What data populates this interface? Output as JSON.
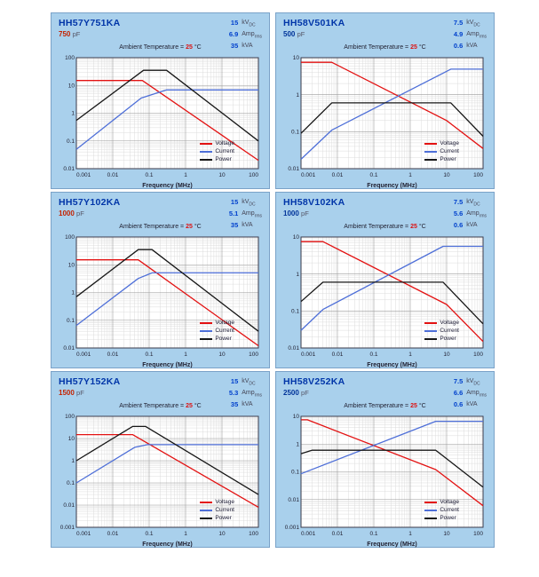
{
  "colors": {
    "voltage": "#e31212",
    "current": "#4e6fd8",
    "power": "#161616",
    "panel_bg": "#a9d0ec",
    "title_navy": "#0035a8",
    "rating_value_blue": "#0040cc",
    "ambient_red": "#dd1111"
  },
  "ambient": {
    "prefix": "Ambient Temperature =",
    "value": "25",
    "unit": "°C"
  },
  "legend": [
    "Voltage",
    "Current",
    "Power"
  ],
  "xlabel": "Frequency (MHz)",
  "x_ticks": [
    "0.001",
    "0.01",
    "0.1",
    "1",
    "10",
    "100"
  ],
  "chart_data": [
    {
      "type": "line",
      "part_number": "HH57Y751KA",
      "capacitance": "750",
      "cap_unit": "pF",
      "cap_color": "#c42200",
      "ratings": [
        {
          "value": "15",
          "unit": "kV",
          "sub": "DC"
        },
        {
          "value": "6.9",
          "unit": "Amp",
          "sub": "rms"
        },
        {
          "value": "35",
          "unit": "kVA",
          "sub": ""
        }
      ],
      "xscale": "log",
      "yscale": "log",
      "xlim": [
        0.001,
        100
      ],
      "ylim": [
        0.01,
        100
      ],
      "series": [
        {
          "name": "Voltage",
          "points": [
            [
              0.001,
              15
            ],
            [
              0.065,
              15
            ],
            [
              100,
              0.02
            ]
          ]
        },
        {
          "name": "Current",
          "points": [
            [
              0.001,
              0.05
            ],
            [
              0.06,
              3.5
            ],
            [
              0.3,
              6.9
            ],
            [
              100,
              6.9
            ]
          ]
        },
        {
          "name": "Power",
          "points": [
            [
              0.001,
              0.55
            ],
            [
              0.07,
              35
            ],
            [
              0.3,
              35
            ],
            [
              100,
              0.1
            ]
          ]
        }
      ]
    },
    {
      "type": "line",
      "part_number": "HH58V501KA",
      "capacitance": "500",
      "cap_unit": "pF",
      "cap_color": "#003399",
      "ratings": [
        {
          "value": "7.5",
          "unit": "kV",
          "sub": "DC"
        },
        {
          "value": "4.9",
          "unit": "Amp",
          "sub": "rms"
        },
        {
          "value": "0.6",
          "unit": "kVA",
          "sub": ""
        }
      ],
      "xscale": "log",
      "yscale": "log",
      "xlim": [
        0.001,
        100
      ],
      "ylim": [
        0.01,
        10
      ],
      "series": [
        {
          "name": "Voltage",
          "points": [
            [
              0.001,
              7.5
            ],
            [
              0.007,
              7.5
            ],
            [
              10,
              0.2
            ],
            [
              100,
              0.035
            ]
          ]
        },
        {
          "name": "Current",
          "points": [
            [
              0.001,
              0.018
            ],
            [
              0.007,
              0.11
            ],
            [
              13,
              4.9
            ],
            [
              100,
              4.9
            ]
          ]
        },
        {
          "name": "Power",
          "points": [
            [
              0.001,
              0.09
            ],
            [
              0.007,
              0.6
            ],
            [
              13,
              0.6
            ],
            [
              100,
              0.075
            ]
          ]
        }
      ]
    },
    {
      "type": "line",
      "part_number": "HH57Y102KA",
      "capacitance": "1000",
      "cap_unit": "pF",
      "cap_color": "#c42200",
      "ratings": [
        {
          "value": "15",
          "unit": "kV",
          "sub": "DC"
        },
        {
          "value": "5.1",
          "unit": "Amp",
          "sub": "rms"
        },
        {
          "value": "35",
          "unit": "kVA",
          "sub": ""
        }
      ],
      "xscale": "log",
      "yscale": "log",
      "xlim": [
        0.001,
        100
      ],
      "ylim": [
        0.01,
        100
      ],
      "series": [
        {
          "name": "Voltage",
          "points": [
            [
              0.001,
              15
            ],
            [
              0.05,
              15
            ],
            [
              100,
              0.012
            ]
          ]
        },
        {
          "name": "Current",
          "points": [
            [
              0.001,
              0.065
            ],
            [
              0.05,
              3.2
            ],
            [
              0.12,
              5.1
            ],
            [
              100,
              5.1
            ]
          ]
        },
        {
          "name": "Power",
          "points": [
            [
              0.001,
              0.7
            ],
            [
              0.05,
              35
            ],
            [
              0.12,
              35
            ],
            [
              100,
              0.04
            ]
          ]
        }
      ]
    },
    {
      "type": "line",
      "part_number": "HH58V102KA",
      "capacitance": "1000",
      "cap_unit": "pF",
      "cap_color": "#003399",
      "ratings": [
        {
          "value": "7.5",
          "unit": "kV",
          "sub": "DC"
        },
        {
          "value": "5.6",
          "unit": "Amp",
          "sub": "rms"
        },
        {
          "value": "0.6",
          "unit": "kVA",
          "sub": ""
        }
      ],
      "xscale": "log",
      "yscale": "log",
      "xlim": [
        0.001,
        100
      ],
      "ylim": [
        0.01,
        10
      ],
      "series": [
        {
          "name": "Voltage",
          "points": [
            [
              0.001,
              7.5
            ],
            [
              0.004,
              7.5
            ],
            [
              10,
              0.15
            ],
            [
              100,
              0.015
            ]
          ]
        },
        {
          "name": "Current",
          "points": [
            [
              0.001,
              0.03
            ],
            [
              0.004,
              0.11
            ],
            [
              8,
              5.6
            ],
            [
              100,
              5.6
            ]
          ]
        },
        {
          "name": "Power",
          "points": [
            [
              0.001,
              0.18
            ],
            [
              0.004,
              0.6
            ],
            [
              8,
              0.6
            ],
            [
              100,
              0.045
            ]
          ]
        }
      ]
    },
    {
      "type": "line",
      "part_number": "HH57Y152KA",
      "capacitance": "1500",
      "cap_unit": "pF",
      "cap_color": "#c42200",
      "ratings": [
        {
          "value": "15",
          "unit": "kV",
          "sub": "DC"
        },
        {
          "value": "5.3",
          "unit": "Amp",
          "sub": "rms"
        },
        {
          "value": "35",
          "unit": "kVA",
          "sub": ""
        }
      ],
      "xscale": "log",
      "yscale": "log",
      "xlim": [
        0.001,
        100
      ],
      "ylim": [
        0.001,
        100
      ],
      "series": [
        {
          "name": "Voltage",
          "points": [
            [
              0.001,
              15
            ],
            [
              0.035,
              15
            ],
            [
              100,
              0.008
            ]
          ]
        },
        {
          "name": "Current",
          "points": [
            [
              0.001,
              0.1
            ],
            [
              0.04,
              4.0
            ],
            [
              0.09,
              5.3
            ],
            [
              100,
              5.3
            ]
          ]
        },
        {
          "name": "Power",
          "points": [
            [
              0.001,
              1.0
            ],
            [
              0.035,
              35
            ],
            [
              0.08,
              35
            ],
            [
              100,
              0.03
            ]
          ]
        }
      ]
    },
    {
      "type": "line",
      "part_number": "HH58V252KA",
      "capacitance": "2500",
      "cap_unit": "pF",
      "cap_color": "#003399",
      "ratings": [
        {
          "value": "7.5",
          "unit": "kV",
          "sub": "DC"
        },
        {
          "value": "6.6",
          "unit": "Amp",
          "sub": "rms"
        },
        {
          "value": "0.6",
          "unit": "kVA",
          "sub": ""
        }
      ],
      "xscale": "log",
      "yscale": "log",
      "xlim": [
        0.001,
        100
      ],
      "ylim": [
        0.001,
        10
      ],
      "series": [
        {
          "name": "Voltage",
          "points": [
            [
              0.001,
              7.5
            ],
            [
              0.0015,
              7.5
            ],
            [
              5,
              0.12
            ],
            [
              100,
              0.006
            ]
          ]
        },
        {
          "name": "Current",
          "points": [
            [
              0.001,
              0.085
            ],
            [
              5,
              6.6
            ],
            [
              100,
              6.6
            ]
          ]
        },
        {
          "name": "Power",
          "points": [
            [
              0.001,
              0.45
            ],
            [
              0.002,
              0.6
            ],
            [
              5,
              0.6
            ],
            [
              100,
              0.028
            ]
          ]
        }
      ]
    }
  ]
}
